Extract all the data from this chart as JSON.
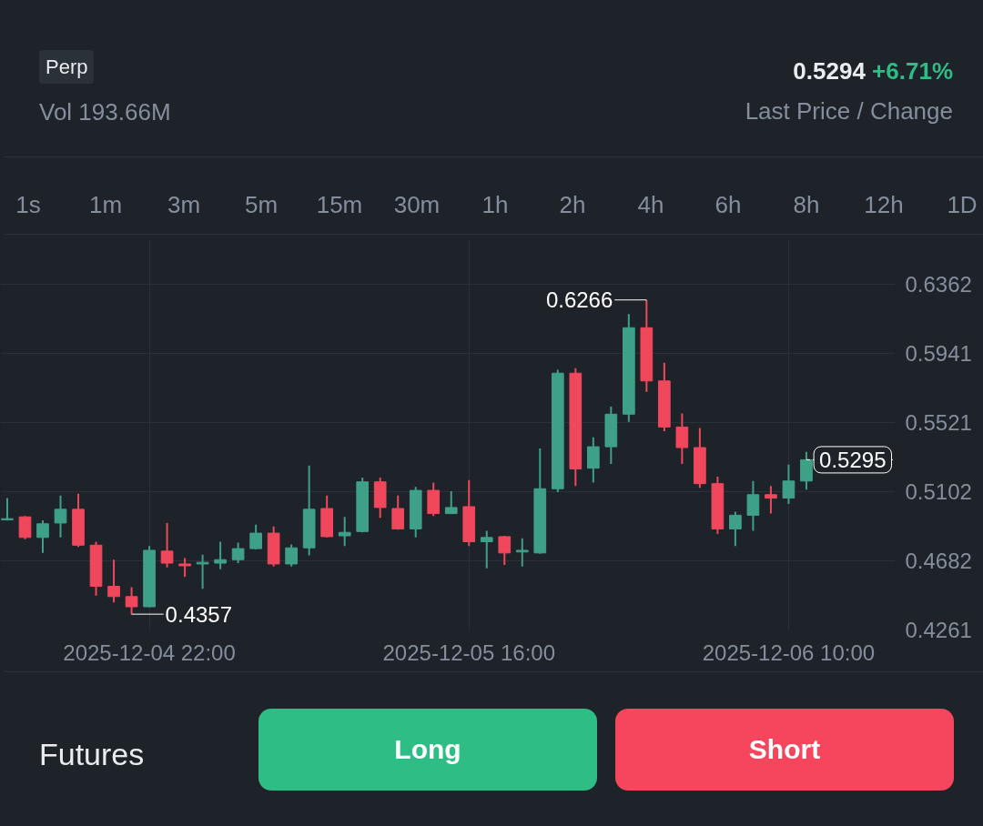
{
  "chart_data": {
    "type": "candlestick",
    "subtitle": "Vol 193.66M",
    "annotations": [
      "Perp",
      "0.5294",
      "+6.71%",
      "Last Price / Change",
      "1s",
      "1m",
      "3m",
      "5m",
      "15m",
      "30m",
      "1h",
      "2h",
      "4h",
      "6h",
      "8h",
      "12h",
      "1D",
      "Futures",
      "Long",
      "Short",
      {
        "text": "0.6266",
        "x": "2025-12-06T02:00",
        "y": 0.6266
      },
      {
        "text": "0.4357",
        "x": "2025-12-04T21:00",
        "y": 0.4357
      }
    ],
    "x": [
      "2025-12-04T14:00",
      "2025-12-04T15:00",
      "2025-12-04T16:00",
      "2025-12-04T17:00",
      "2025-12-04T18:00",
      "2025-12-04T19:00",
      "2025-12-04T20:00",
      "2025-12-04T21:00",
      "2025-12-04T22:00",
      "2025-12-04T23:00",
      "2025-12-05T00:00",
      "2025-12-05T01:00",
      "2025-12-05T02:00",
      "2025-12-05T03:00",
      "2025-12-05T04:00",
      "2025-12-05T05:00",
      "2025-12-05T06:00",
      "2025-12-05T07:00",
      "2025-12-05T08:00",
      "2025-12-05T09:00",
      "2025-12-05T10:00",
      "2025-12-05T11:00",
      "2025-12-05T12:00",
      "2025-12-05T13:00",
      "2025-12-05T14:00",
      "2025-12-05T15:00",
      "2025-12-05T16:00",
      "2025-12-05T17:00",
      "2025-12-05T18:00",
      "2025-12-05T19:00",
      "2025-12-05T20:00",
      "2025-12-05T21:00",
      "2025-12-05T22:00",
      "2025-12-05T23:00",
      "2025-12-06T00:00",
      "2025-12-06T01:00",
      "2025-12-06T02:00",
      "2025-12-06T03:00",
      "2025-12-06T04:00",
      "2025-12-06T05:00",
      "2025-12-06T06:00",
      "2025-12-06T07:00",
      "2025-12-06T08:00",
      "2025-12-06T09:00",
      "2025-12-06T10:00",
      "2025-12-06T11:00"
    ],
    "ohlc": [
      [
        0.493,
        0.5062,
        0.4925,
        0.4937
      ],
      [
        0.4948,
        0.4953,
        0.4812,
        0.4823
      ],
      [
        0.4823,
        0.4927,
        0.4729,
        0.4906
      ],
      [
        0.4911,
        0.5078,
        0.4823,
        0.4994
      ],
      [
        0.4994,
        0.5088,
        0.4766,
        0.4776
      ],
      [
        0.4776,
        0.4797,
        0.4469,
        0.4526
      ],
      [
        0.4526,
        0.4688,
        0.4428,
        0.4464
      ],
      [
        0.4464,
        0.4521,
        0.4357,
        0.4402
      ],
      [
        0.4402,
        0.4771,
        0.44,
        0.4745
      ],
      [
        0.474,
        0.4911,
        0.4641,
        0.4667
      ],
      [
        0.4662,
        0.4698,
        0.4584,
        0.4651
      ],
      [
        0.4662,
        0.4719,
        0.4511,
        0.4672
      ],
      [
        0.4667,
        0.4797,
        0.463,
        0.4688
      ],
      [
        0.4688,
        0.4792,
        0.4667,
        0.4755
      ],
      [
        0.4755,
        0.4901,
        0.475,
        0.4849
      ],
      [
        0.4849,
        0.489,
        0.4646,
        0.4662
      ],
      [
        0.4662,
        0.4781,
        0.4646,
        0.476
      ],
      [
        0.476,
        0.526,
        0.4714,
        0.4994
      ],
      [
        0.4999,
        0.5078,
        0.4823,
        0.4828
      ],
      [
        0.4833,
        0.4948,
        0.4771,
        0.4854
      ],
      [
        0.4859,
        0.5187,
        0.4854,
        0.5161
      ],
      [
        0.5161,
        0.5187,
        0.4942,
        0.5005
      ],
      [
        0.4999,
        0.5078,
        0.487,
        0.4875
      ],
      [
        0.4875,
        0.513,
        0.4823,
        0.5109
      ],
      [
        0.5109,
        0.5156,
        0.4953,
        0.4968
      ],
      [
        0.4968,
        0.5104,
        0.4966,
        0.5005
      ],
      [
        0.501,
        0.5171,
        0.4771,
        0.4797
      ],
      [
        0.4797,
        0.4864,
        0.4636,
        0.4823
      ],
      [
        0.4828,
        0.4833,
        0.4656,
        0.4729
      ],
      [
        0.4735,
        0.4818,
        0.4646,
        0.4745
      ],
      [
        0.4729,
        0.5364,
        0.4724,
        0.5119
      ],
      [
        0.5119,
        0.5842,
        0.5098,
        0.5821
      ],
      [
        0.5821,
        0.5852,
        0.5135,
        0.5239
      ],
      [
        0.5244,
        0.5431,
        0.5156,
        0.5374
      ],
      [
        0.5374,
        0.5618,
        0.527,
        0.5572
      ],
      [
        0.5572,
        0.618,
        0.5525,
        0.6097
      ],
      [
        0.6097,
        0.6266,
        0.5707,
        0.5774
      ],
      [
        0.5774,
        0.5884,
        0.5468,
        0.5494
      ],
      [
        0.5494,
        0.5577,
        0.527,
        0.5369
      ],
      [
        0.5369,
        0.5488,
        0.5124,
        0.515
      ],
      [
        0.515,
        0.5192,
        0.4844,
        0.4875
      ],
      [
        0.4875,
        0.4979,
        0.4771,
        0.4958
      ],
      [
        0.4958,
        0.5166,
        0.4864,
        0.5083
      ],
      [
        0.5083,
        0.5135,
        0.4968,
        0.5062
      ],
      [
        0.5062,
        0.5265,
        0.5026,
        0.5166
      ],
      [
        0.5166,
        0.5343,
        0.5114,
        0.5295
      ]
    ],
    "colors": [
      "#3fa088",
      "#f0475c",
      "#3fa088",
      "#3fa088",
      "#f0475c",
      "#f0475c",
      "#f0475c",
      "#f0475c",
      "#3fa088",
      "#f0475c",
      "#f0475c",
      "#3fa088",
      "#3fa088",
      "#3fa088",
      "#3fa088",
      "#f0475c",
      "#3fa088",
      "#3fa088",
      "#f0475c",
      "#3fa088",
      "#3fa088",
      "#f0475c",
      "#f0475c",
      "#3fa088",
      "#f0475c",
      "#3fa088",
      "#f0475c",
      "#3fa088",
      "#f0475c",
      "#3fa088",
      "#3fa088",
      "#3fa088",
      "#f0475c",
      "#3fa088",
      "#3fa088",
      "#3fa088",
      "#f0475c",
      "#f0475c",
      "#f0475c",
      "#f0475c",
      "#f0475c",
      "#3fa088",
      "#3fa088",
      "#f0475c",
      "#3fa088",
      "#3fa088"
    ],
    "xlim": [
      "2025-12-04T13:37",
      "2025-12-06T16:00"
    ],
    "xticks": [
      {
        "value": "2025-12-04T22:00",
        "label": "2025-12-04 22:00"
      },
      {
        "value": "2025-12-05T16:00",
        "label": "2025-12-05 16:00"
      },
      {
        "value": "2025-12-06T10:00",
        "label": "2025-12-06 10:00"
      }
    ],
    "ylim": [
      0.4261,
      0.6632
    ],
    "yticks": [
      0.4261,
      0.4682,
      0.5102,
      0.5521,
      0.5941,
      0.6362
    ],
    "ref_lines": [
      {
        "axis": "y",
        "value": 0.5295,
        "label": "0.5295",
        "line_style": "dashed",
        "color": "#ffffff"
      }
    ],
    "grid": true
  }
}
